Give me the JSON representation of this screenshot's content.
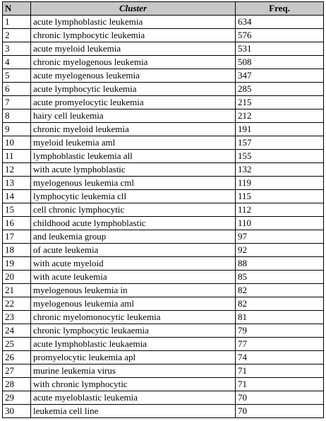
{
  "table": {
    "headers": {
      "n": "N",
      "cluster": "Cluster",
      "freq": "Freq."
    },
    "rows": [
      {
        "n": "1",
        "cluster": "acute lymphoblastic leukemia",
        "freq": "634"
      },
      {
        "n": "2",
        "cluster": "chronic lymphocytic leukemia",
        "freq": "576"
      },
      {
        "n": "3",
        "cluster": "acute myeloid leukemia",
        "freq": "531"
      },
      {
        "n": "4",
        "cluster": "chronic myelogenous leukemia",
        "freq": "508"
      },
      {
        "n": "5",
        "cluster": "acute myelogenous leukemia",
        "freq": "347"
      },
      {
        "n": "6",
        "cluster": "acute lymphocytic leukemia",
        "freq": "285"
      },
      {
        "n": "7",
        "cluster": "acute promyelocytic leukemia",
        "freq": "215"
      },
      {
        "n": "8",
        "cluster": "hairy cell leukemia",
        "freq": "212"
      },
      {
        "n": "9",
        "cluster": "chronic myeloid leukemia",
        "freq": "191"
      },
      {
        "n": "10",
        "cluster": "myeloid leukemia aml",
        "freq": "157"
      },
      {
        "n": "11",
        "cluster": "lymphoblastic leukemia all",
        "freq": "155"
      },
      {
        "n": "12",
        "cluster": "with acute lymphoblastic",
        "freq": "132"
      },
      {
        "n": "13",
        "cluster": "myelogenous leukemia cml",
        "freq": "119"
      },
      {
        "n": "14",
        "cluster": "lymphocytic leukemia cll",
        "freq": "115"
      },
      {
        "n": "15",
        "cluster": "cell chronic lymphocytic",
        "freq": "112"
      },
      {
        "n": "16",
        "cluster": "childhood acute lymphoblastic",
        "freq": "110"
      },
      {
        "n": "17",
        "cluster": "and leukemia group",
        "freq": "97"
      },
      {
        "n": "18",
        "cluster": "of acute leukemia",
        "freq": "92"
      },
      {
        "n": "19",
        "cluster": "with acute myeloid",
        "freq": "88"
      },
      {
        "n": "20",
        "cluster": "with acute leukemia",
        "freq": "85"
      },
      {
        "n": "21",
        "cluster": "myelogenous leukemia in",
        "freq": "82"
      },
      {
        "n": "22",
        "cluster": "myelogenous leukemia aml",
        "freq": "82"
      },
      {
        "n": "23",
        "cluster": "chronic myelomonocytic leukemia",
        "freq": "81"
      },
      {
        "n": "24",
        "cluster": "chronic lymphocytic leukaemia",
        "freq": "79"
      },
      {
        "n": "25",
        "cluster": "acute lymphoblastic leukaemia",
        "freq": "77"
      },
      {
        "n": "26",
        "cluster": "promyelocytic leukemia apl",
        "freq": "74"
      },
      {
        "n": "27",
        "cluster": "murine leukemia virus",
        "freq": "71"
      },
      {
        "n": "28",
        "cluster": "with chronic lymphocytic",
        "freq": "71"
      },
      {
        "n": "29",
        "cluster": "acute myeloblastic leukemia",
        "freq": "70"
      },
      {
        "n": "30",
        "cluster": "leukemia cell line",
        "freq": "70"
      }
    ]
  },
  "colors": {
    "header_background": "#c8c8c8",
    "border": "#000000",
    "text": "#000000"
  }
}
